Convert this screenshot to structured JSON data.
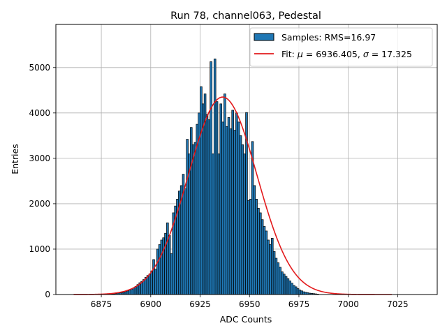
{
  "chart_data": {
    "type": "bar",
    "title": "Run 78, channel063, Pedestal",
    "xlabel": "ADC Counts",
    "ylabel": "Entries",
    "xlim": [
      6852,
      7045
    ],
    "ylim": [
      0,
      5950
    ],
    "x_ticks": [
      6875,
      6900,
      6925,
      6950,
      6975,
      7000,
      7025
    ],
    "y_ticks": [
      0,
      1000,
      2000,
      3000,
      4000,
      5000
    ],
    "x_tick_labels": [
      "6875",
      "6900",
      "6925",
      "6950",
      "6975",
      "7000",
      "7025"
    ],
    "y_tick_labels": [
      "0",
      "1000",
      "2000",
      "3000",
      "4000",
      "5000"
    ],
    "grid": true,
    "legend_position": "top-right",
    "bar_color": "#1f77b4",
    "bar_edge_color": "#000000",
    "fit_color": "#e31a1c",
    "histogram": {
      "name": "Samples: RMS=16.97",
      "bin_start": 6879,
      "bin_width": 1,
      "counts": [
        10,
        10,
        15,
        20,
        30,
        35,
        40,
        55,
        70,
        80,
        100,
        120,
        150,
        180,
        220,
        260,
        290,
        330,
        380,
        420,
        450,
        520,
        770,
        560,
        1000,
        1100,
        1200,
        1250,
        1350,
        1580,
        1300,
        900,
        1800,
        1950,
        2100,
        2280,
        2400,
        2650,
        2330,
        3420,
        3100,
        3680,
        3300,
        3350,
        3750,
        4000,
        4580,
        4200,
        4420,
        3970,
        3850,
        5130,
        3100,
        5190,
        4250,
        3100,
        4200,
        3800,
        4420,
        3700,
        3900,
        3650,
        4060,
        3620,
        4000,
        3800,
        3500,
        3300,
        3100,
        4010,
        2070,
        2100,
        3370,
        2400,
        2100,
        1900,
        1800,
        1650,
        1500,
        1400,
        1200,
        1100,
        1240,
        950,
        800,
        700,
        600,
        500,
        450,
        400,
        350,
        300,
        250,
        200,
        170,
        130,
        100,
        80,
        60,
        50,
        40,
        30,
        25,
        20,
        15,
        10
      ]
    },
    "fit": {
      "label": "Fit: μ = 6936.405, σ = 17.325",
      "label_prefix": "Fit: ",
      "label_mu": "μ",
      "label_mid": " = 6936.405, ",
      "label_sigma": "σ",
      "label_suffix": " = 17.325",
      "mu": 6936.405,
      "sigma": 17.325,
      "amplitude": 4350,
      "x_range": [
        6861,
        7022
      ]
    }
  }
}
